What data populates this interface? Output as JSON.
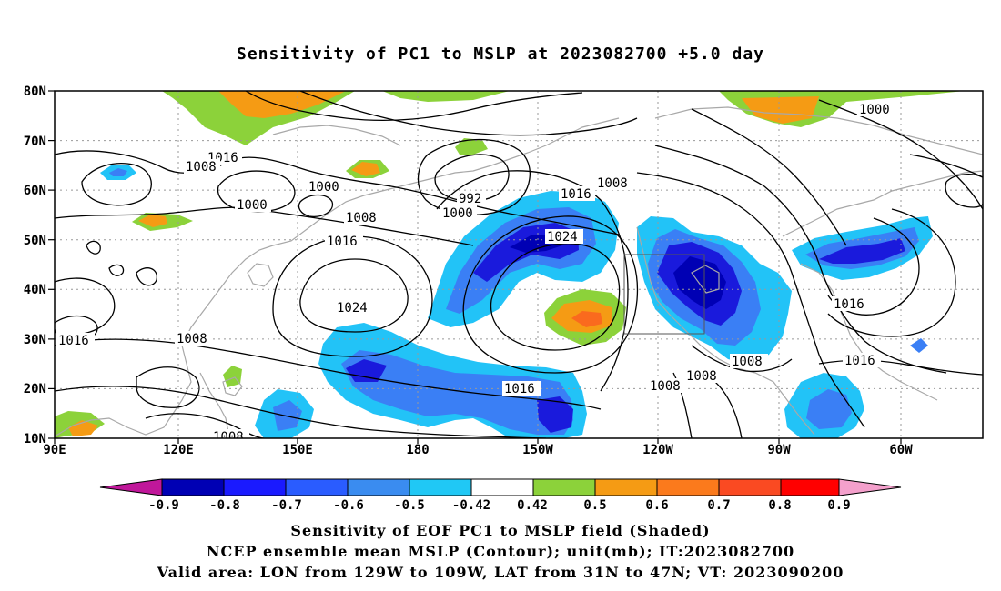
{
  "title": "Sensitivity of PC1 to MSLP at 2023082700 +5.0 day",
  "map": {
    "lon_range": [
      "90E",
      "50W"
    ],
    "lat_range": [
      "10N",
      "80N"
    ],
    "lat_labels": [
      "80N",
      "70N",
      "60N",
      "50N",
      "40N",
      "30N",
      "20N",
      "10N"
    ],
    "lon_labels": [
      "90E",
      "120E",
      "150E",
      "180",
      "150W",
      "120W",
      "90W",
      "60W"
    ],
    "contour_labels": [
      "1016",
      "1008",
      "1000",
      "1000",
      "992",
      "1000",
      "1016",
      "1008",
      "1008",
      "1016",
      "1024",
      "1024",
      "1016",
      "1008",
      "1016",
      "1008",
      "1008",
      "1008",
      "1016",
      "1016",
      "1000",
      "1008"
    ],
    "shading_colors": {
      "strong_negative": "#1a1adc",
      "negative": "#3a7ff5",
      "weak_negative": "#22c3f7",
      "weak_positive": "#8cd23a",
      "positive": "#f59b14",
      "strong_positive": "#fa6a1e"
    },
    "valid_area_box": "LON 129W-109W, LAT 31N-47N"
  },
  "colorbar": {
    "labels": [
      "-0.9",
      "-0.8",
      "-0.7",
      "-0.6",
      "-0.5",
      "-0.42",
      "0.42",
      "0.5",
      "0.6",
      "0.7",
      "0.8",
      "0.9"
    ],
    "colors": [
      "#c0179a",
      "#0000b4",
      "#1a1aff",
      "#2a5cff",
      "#3a8cf0",
      "#20c8f5",
      "#ffffff",
      "#8cd23a",
      "#f59b14",
      "#fb7a1c",
      "#fa4a22",
      "#ff0000",
      "#f4a0cc"
    ]
  },
  "captions": [
    "Sensitivity of EOF PC1 to MSLP field (Shaded)",
    "NCEP ensemble mean MSLP (Contour); unit(mb); IT:2023082700",
    "Valid area: LON from 129W to 109W, LAT from 31N to 47N; VT: 2023090200"
  ]
}
